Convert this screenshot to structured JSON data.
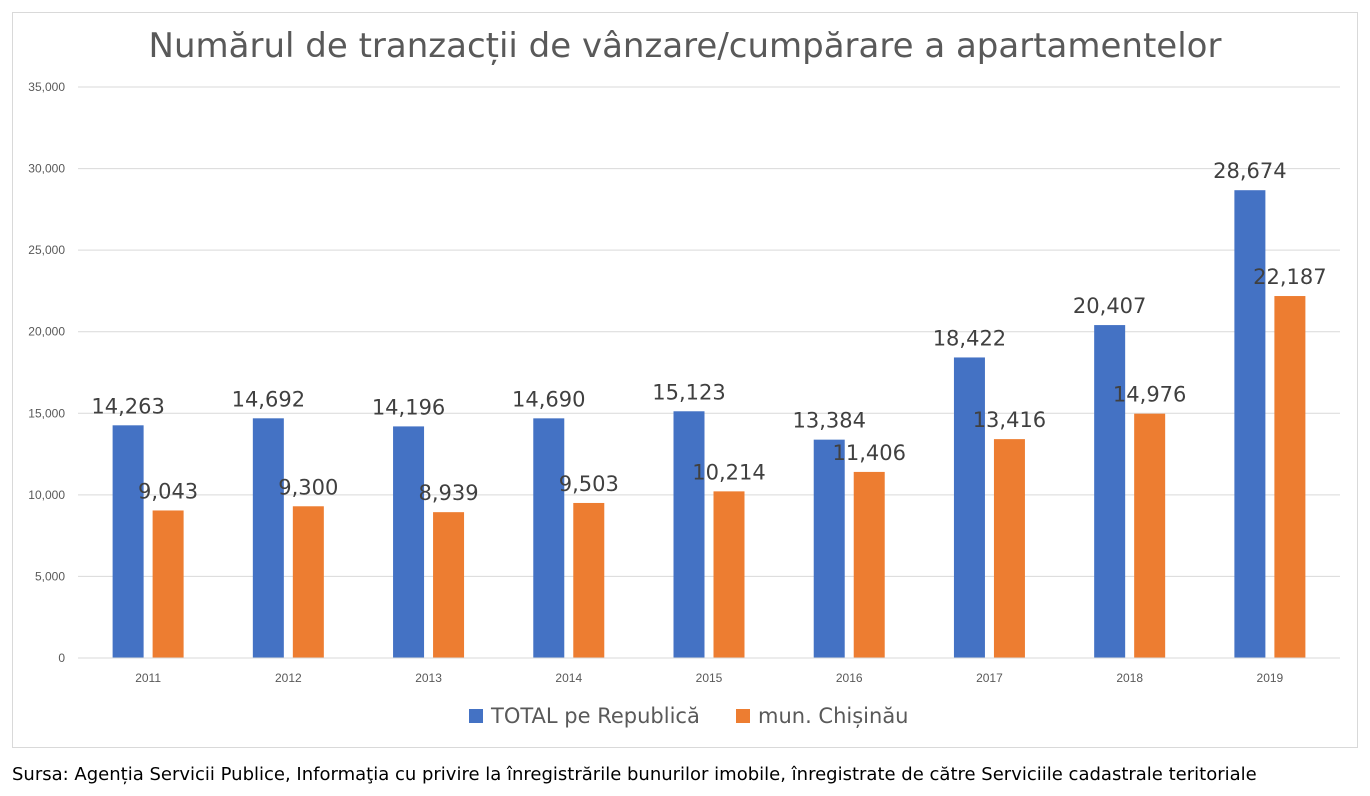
{
  "chart_data": {
    "type": "bar",
    "title": "Numărul de tranzacții de vânzare/cumpărare a apartamentelor",
    "xlabel": "",
    "ylabel": "",
    "categories": [
      "2011",
      "2012",
      "2013",
      "2014",
      "2015",
      "2016",
      "2017",
      "2018",
      "2019"
    ],
    "series": [
      {
        "name": "TOTAL pe Republică",
        "color": "#4472C4",
        "values": [
          14263,
          14692,
          14196,
          14690,
          15123,
          13384,
          18422,
          20407,
          28674
        ],
        "labels": [
          "14,263",
          "14,692",
          "14,196",
          "14,690",
          "15,123",
          "13,384",
          "18,422",
          "20,407",
          "28,674"
        ]
      },
      {
        "name": "mun. Chișinău",
        "color": "#ED7D31",
        "values": [
          9043,
          9300,
          8939,
          9503,
          10214,
          11406,
          13416,
          14976,
          22187
        ],
        "labels": [
          "9,043",
          "9,300",
          "8,939",
          "9,503",
          "10,214",
          "11,406",
          "13,416",
          "14,976",
          "22,187"
        ]
      }
    ],
    "ylim": [
      0,
      35000
    ],
    "yticks": [
      0,
      5000,
      10000,
      15000,
      20000,
      25000,
      30000,
      35000
    ],
    "ytick_labels": [
      "0",
      "5,000",
      "10,000",
      "15,000",
      "20,000",
      "25,000",
      "30,000",
      "35,000"
    ],
    "grid": true,
    "legend": "bottom-center"
  },
  "source_note": "Sursa: Agenția Servicii Publice, Informaţia cu privire la înregistrările bunurilor imobile, înregistrate de către Serviciile cadastrale teritoriale"
}
